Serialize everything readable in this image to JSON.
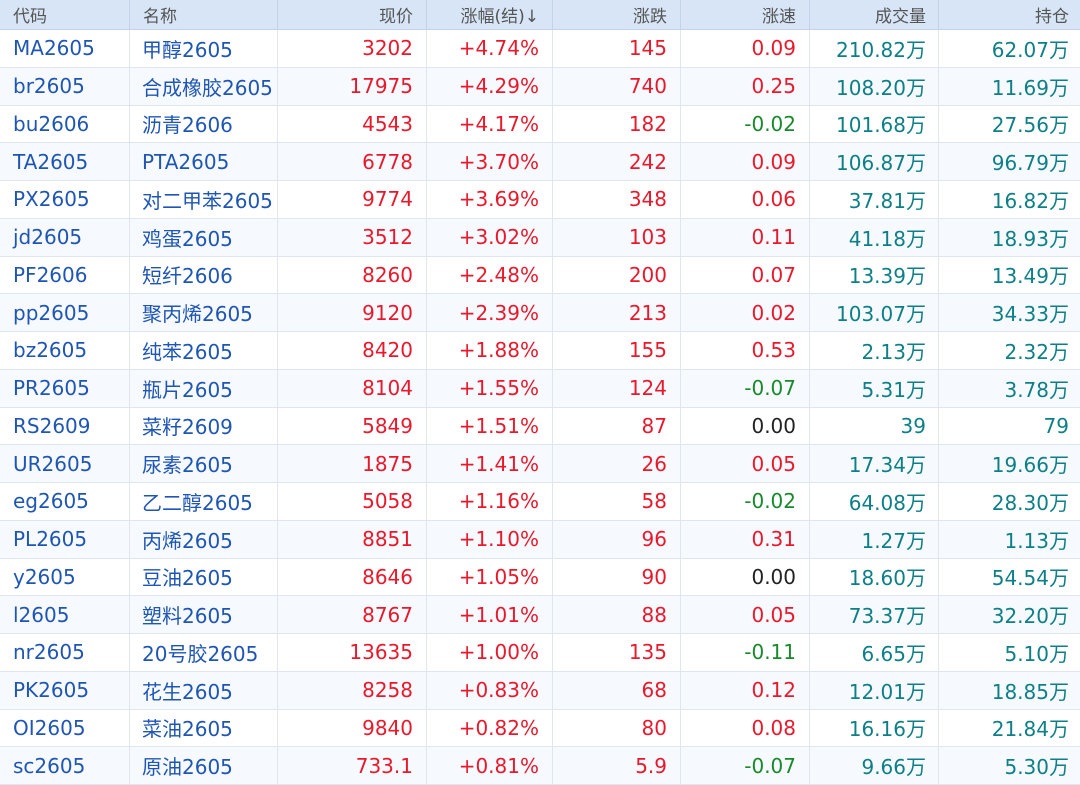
{
  "columns": {
    "code": "代码",
    "name": "名称",
    "price": "现价",
    "pct": "涨幅(结)↓",
    "chg": "涨跌",
    "speed": "涨速",
    "vol": "成交量",
    "oi": "持仓"
  },
  "colors": {
    "header_bg": "#d7e5f6",
    "code_name": "#1f56b4",
    "up": "#e8192c",
    "down": "#188a2c",
    "flat": "#222222",
    "volume": "#0d7f86"
  },
  "rows": [
    {
      "code": "MA2605",
      "name": "甲醇2605",
      "price": "3202",
      "pct": "+4.74%",
      "chg": "145",
      "speed": "0.09",
      "speed_dir": "up",
      "vol": "210.82万",
      "oi": "62.07万"
    },
    {
      "code": "br2605",
      "name": "合成橡胶2605",
      "price": "17975",
      "pct": "+4.29%",
      "chg": "740",
      "speed": "0.25",
      "speed_dir": "up",
      "vol": "108.20万",
      "oi": "11.69万"
    },
    {
      "code": "bu2606",
      "name": "沥青2606",
      "price": "4543",
      "pct": "+4.17%",
      "chg": "182",
      "speed": "-0.02",
      "speed_dir": "down",
      "vol": "101.68万",
      "oi": "27.56万"
    },
    {
      "code": "TA2605",
      "name": "PTA2605",
      "price": "6778",
      "pct": "+3.70%",
      "chg": "242",
      "speed": "0.09",
      "speed_dir": "up",
      "vol": "106.87万",
      "oi": "96.79万"
    },
    {
      "code": "PX2605",
      "name": "对二甲苯2605",
      "price": "9774",
      "pct": "+3.69%",
      "chg": "348",
      "speed": "0.06",
      "speed_dir": "up",
      "vol": "37.81万",
      "oi": "16.82万"
    },
    {
      "code": "jd2605",
      "name": "鸡蛋2605",
      "price": "3512",
      "pct": "+3.02%",
      "chg": "103",
      "speed": "0.11",
      "speed_dir": "up",
      "vol": "41.18万",
      "oi": "18.93万"
    },
    {
      "code": "PF2606",
      "name": "短纤2606",
      "price": "8260",
      "pct": "+2.48%",
      "chg": "200",
      "speed": "0.07",
      "speed_dir": "up",
      "vol": "13.39万",
      "oi": "13.49万"
    },
    {
      "code": "pp2605",
      "name": "聚丙烯2605",
      "price": "9120",
      "pct": "+2.39%",
      "chg": "213",
      "speed": "0.02",
      "speed_dir": "up",
      "vol": "103.07万",
      "oi": "34.33万"
    },
    {
      "code": "bz2605",
      "name": "纯苯2605",
      "price": "8420",
      "pct": "+1.88%",
      "chg": "155",
      "speed": "0.53",
      "speed_dir": "up",
      "vol": "2.13万",
      "oi": "2.32万"
    },
    {
      "code": "PR2605",
      "name": "瓶片2605",
      "price": "8104",
      "pct": "+1.55%",
      "chg": "124",
      "speed": "-0.07",
      "speed_dir": "down",
      "vol": "5.31万",
      "oi": "3.78万"
    },
    {
      "code": "RS2609",
      "name": "菜籽2609",
      "price": "5849",
      "pct": "+1.51%",
      "chg": "87",
      "speed": "0.00",
      "speed_dir": "flat",
      "vol": "39",
      "oi": "79"
    },
    {
      "code": "UR2605",
      "name": "尿素2605",
      "price": "1875",
      "pct": "+1.41%",
      "chg": "26",
      "speed": "0.05",
      "speed_dir": "up",
      "vol": "17.34万",
      "oi": "19.66万"
    },
    {
      "code": "eg2605",
      "name": "乙二醇2605",
      "price": "5058",
      "pct": "+1.16%",
      "chg": "58",
      "speed": "-0.02",
      "speed_dir": "down",
      "vol": "64.08万",
      "oi": "28.30万"
    },
    {
      "code": "PL2605",
      "name": "丙烯2605",
      "price": "8851",
      "pct": "+1.10%",
      "chg": "96",
      "speed": "0.31",
      "speed_dir": "up",
      "vol": "1.27万",
      "oi": "1.13万"
    },
    {
      "code": "y2605",
      "name": "豆油2605",
      "price": "8646",
      "pct": "+1.05%",
      "chg": "90",
      "speed": "0.00",
      "speed_dir": "flat",
      "vol": "18.60万",
      "oi": "54.54万"
    },
    {
      "code": "l2605",
      "name": "塑料2605",
      "price": "8767",
      "pct": "+1.01%",
      "chg": "88",
      "speed": "0.05",
      "speed_dir": "up",
      "vol": "73.37万",
      "oi": "32.20万"
    },
    {
      "code": "nr2605",
      "name": "20号胶2605",
      "price": "13635",
      "pct": "+1.00%",
      "chg": "135",
      "speed": "-0.11",
      "speed_dir": "down",
      "vol": "6.65万",
      "oi": "5.10万"
    },
    {
      "code": "PK2605",
      "name": "花生2605",
      "price": "8258",
      "pct": "+0.83%",
      "chg": "68",
      "speed": "0.12",
      "speed_dir": "up",
      "vol": "12.01万",
      "oi": "18.85万"
    },
    {
      "code": "OI2605",
      "name": "菜油2605",
      "price": "9840",
      "pct": "+0.82%",
      "chg": "80",
      "speed": "0.08",
      "speed_dir": "up",
      "vol": "16.16万",
      "oi": "21.84万"
    },
    {
      "code": "sc2605",
      "name": "原油2605",
      "price": "733.1",
      "pct": "+0.81%",
      "chg": "5.9",
      "speed": "-0.07",
      "speed_dir": "down",
      "vol": "9.66万",
      "oi": "5.30万"
    }
  ]
}
